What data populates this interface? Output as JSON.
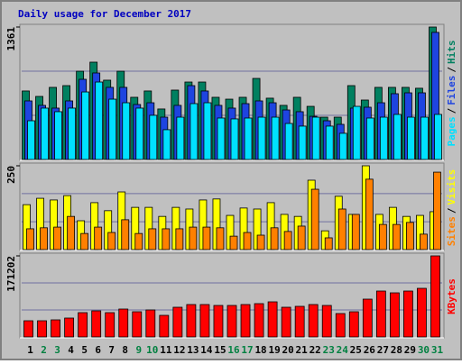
{
  "chart_data": [
    {
      "type": "bar",
      "title": "Daily usage for December 2017",
      "legend_separator": "/",
      "ylim": [
        0,
        1361
      ],
      "yticks": [
        1361
      ],
      "ygrid": [
        454,
        907
      ],
      "series": [
        {
          "name": "Hits",
          "color": "#008060",
          "values": [
            704,
            648,
            741,
            759,
            907,
            1000,
            815,
            907,
            639,
            704,
            519,
            713,
            796,
            796,
            639,
            620,
            639,
            833,
            630,
            556,
            639,
            546,
            435,
            435,
            759,
            611,
            741,
            741,
            741,
            732,
            1361
          ]
        },
        {
          "name": "Files",
          "color": "#1e44e0",
          "values": [
            602,
            556,
            528,
            602,
            824,
            889,
            741,
            741,
            565,
            583,
            435,
            556,
            759,
            704,
            556,
            528,
            574,
            602,
            583,
            509,
            491,
            444,
            398,
            361,
            528,
            537,
            583,
            676,
            685,
            685,
            1306
          ]
        },
        {
          "name": "Pages",
          "color": "#00e0ff",
          "values": [
            398,
            528,
            491,
            528,
            694,
            796,
            620,
            583,
            528,
            454,
            306,
            435,
            574,
            583,
            426,
            417,
            426,
            435,
            435,
            370,
            343,
            435,
            343,
            269,
            546,
            426,
            435,
            463,
            435,
            435,
            463
          ]
        }
      ]
    },
    {
      "type": "bar",
      "legend_separator": "/",
      "ylim": [
        0,
        250
      ],
      "yticks": [
        250
      ],
      "ygrid": [
        83,
        167
      ],
      "series": [
        {
          "name": "Visits",
          "color": "#ffff00",
          "values": [
            134,
            153,
            148,
            161,
            86,
            140,
            116,
            172,
            126,
            126,
            99,
            126,
            121,
            148,
            151,
            102,
            124,
            121,
            140,
            105,
            99,
            207,
            56,
            159,
            105,
            250,
            105,
            126,
            99,
            102,
            113
          ]
        },
        {
          "name": "Sites",
          "color": "#ff8000",
          "values": [
            62,
            65,
            67,
            99,
            48,
            67,
            51,
            89,
            48,
            62,
            62,
            62,
            67,
            67,
            65,
            40,
            51,
            43,
            65,
            54,
            70,
            180,
            35,
            121,
            105,
            210,
            75,
            75,
            81,
            46,
            231
          ]
        }
      ]
    },
    {
      "type": "bar",
      "ylim": [
        0,
        171202
      ],
      "yticks": [
        171202
      ],
      "ygrid": [
        57067,
        114135
      ],
      "series": [
        {
          "name": "KBytes",
          "color": "#ff0000",
          "values": [
            34240,
            34240,
            36140,
            39940,
            51350,
            55160,
            51350,
            58960,
            53250,
            57060,
            45650,
            62770,
            68470,
            68470,
            66570,
            66570,
            68470,
            70370,
            74180,
            62770,
            64670,
            68470,
            66570,
            49450,
            53250,
            79880,
            96990,
            93180,
            96990,
            102700,
            171202
          ]
        }
      ],
      "categories": [
        "1",
        "2",
        "3",
        "4",
        "5",
        "6",
        "7",
        "8",
        "9",
        "10",
        "11",
        "12",
        "13",
        "14",
        "15",
        "16",
        "17",
        "18",
        "19",
        "20",
        "21",
        "22",
        "23",
        "24",
        "25",
        "26",
        "27",
        "28",
        "29",
        "30",
        "31"
      ],
      "category_colors": [
        "#000000",
        "#008040",
        "#008040",
        "#000000",
        "#000000",
        "#000000",
        "#000000",
        "#000000",
        "#008040",
        "#008040",
        "#000000",
        "#000000",
        "#000000",
        "#000000",
        "#000000",
        "#008040",
        "#008040",
        "#000000",
        "#000000",
        "#000000",
        "#000000",
        "#000000",
        "#008040",
        "#008040",
        "#000000",
        "#000000",
        "#000000",
        "#000000",
        "#000000",
        "#008040",
        "#008040"
      ]
    }
  ]
}
